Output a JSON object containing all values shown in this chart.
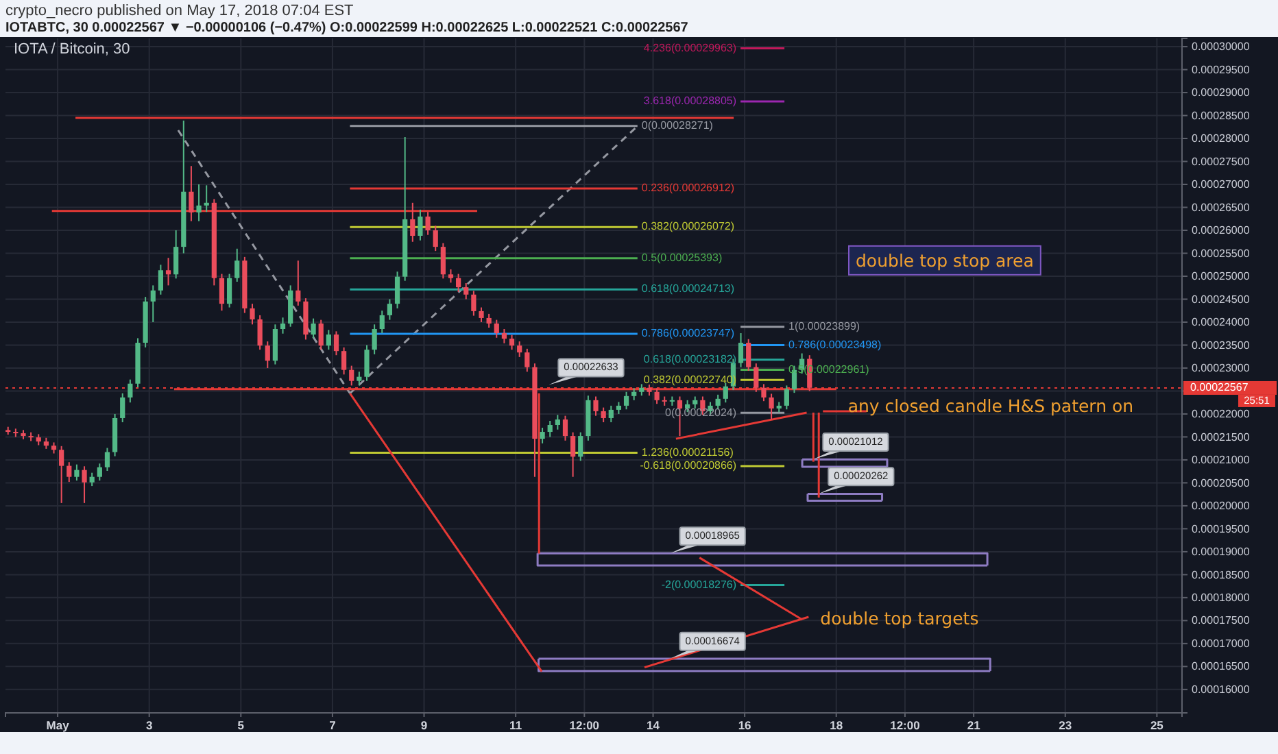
{
  "chart_data": {
    "type": "candlestick",
    "title": "IOTA / Bitcoin, 30",
    "subtitle": "crypto_necro published on May 17, 2018 07:04 EST",
    "annotations": [
      "IOTABTC, 30 0.00022567 ▼ −0.00000106 (−0.47%) O:0.00022599 H:0.00022625 L:0.00022521 C:0.00022567",
      "25:51",
      "double top stop area",
      {
        "text": "any closed candle H&S patern on",
        "x": "2018-05-18T02:30",
        "y": 0.0002215
      },
      {
        "text": "double top targets",
        "x": "2018-05-17T12:00",
        "y": 0.0001752
      },
      {
        "text": "0.00022633",
        "x": "2018-05-11T17:20",
        "y": 0.00022633
      },
      {
        "text": "0.00021012",
        "x": "2018-05-17T12:00",
        "y": 0.00021012
      },
      {
        "text": "0.00020262",
        "x": "2018-05-17T14:50",
        "y": 0.00020262
      },
      {
        "text": "0.00018965",
        "x": "2018-05-14T09:00",
        "y": 0.00018965
      },
      {
        "text": "0.00016674",
        "x": "2018-05-14T09:00",
        "y": 0.00016674
      }
    ],
    "x": [
      "2018-04-29T22:00",
      "2018-04-30T02:00",
      "2018-04-30T06:00",
      "2018-04-30T10:00",
      "2018-04-30T14:00",
      "2018-04-30T18:00",
      "2018-04-30T22:00",
      "2018-05-01T02:00",
      "2018-05-01T06:00",
      "2018-05-01T10:00",
      "2018-05-01T14:00",
      "2018-05-01T18:00",
      "2018-05-01T22:00",
      "2018-05-02T02:00",
      "2018-05-02T06:00",
      "2018-05-02T10:00",
      "2018-05-02T14:00",
      "2018-05-02T18:00",
      "2018-05-02T22:00",
      "2018-05-03T02:00",
      "2018-05-03T06:00",
      "2018-05-03T10:00",
      "2018-05-03T14:00",
      "2018-05-03T18:00",
      "2018-05-03T22:00",
      "2018-05-04T02:00",
      "2018-05-04T06:00",
      "2018-05-04T10:00",
      "2018-05-04T14:00",
      "2018-05-04T18:00",
      "2018-05-04T22:00",
      "2018-05-05T02:00",
      "2018-05-05T06:00",
      "2018-05-05T10:00",
      "2018-05-05T14:00",
      "2018-05-05T18:00",
      "2018-05-05T22:00",
      "2018-05-06T02:00",
      "2018-05-06T06:00",
      "2018-05-06T10:00",
      "2018-05-06T14:00",
      "2018-05-06T18:00",
      "2018-05-06T22:00",
      "2018-05-07T02:00",
      "2018-05-07T06:00",
      "2018-05-07T10:00",
      "2018-05-07T14:00",
      "2018-05-07T18:00",
      "2018-05-07T22:00",
      "2018-05-08T02:00",
      "2018-05-08T06:00",
      "2018-05-08T10:00",
      "2018-05-08T14:00",
      "2018-05-08T18:00",
      "2018-05-08T22:00",
      "2018-05-09T02:00",
      "2018-05-09T06:00",
      "2018-05-09T10:00",
      "2018-05-09T14:00",
      "2018-05-09T18:00",
      "2018-05-09T22:00",
      "2018-05-10T02:00",
      "2018-05-10T06:00",
      "2018-05-10T10:00",
      "2018-05-10T14:00",
      "2018-05-10T18:00",
      "2018-05-10T22:00",
      "2018-05-11T02:00",
      "2018-05-11T06:00",
      "2018-05-11T10:00",
      "2018-05-11T14:00",
      "2018-05-11T18:00",
      "2018-05-11T22:00",
      "2018-05-12T02:00",
      "2018-05-12T06:00",
      "2018-05-12T10:00",
      "2018-05-12T14:00",
      "2018-05-12T18:00",
      "2018-05-12T22:00",
      "2018-05-13T02:00",
      "2018-05-13T06:00",
      "2018-05-13T10:00",
      "2018-05-13T14:00",
      "2018-05-13T18:00",
      "2018-05-13T22:00",
      "2018-05-14T02:00",
      "2018-05-14T06:00",
      "2018-05-14T10:00",
      "2018-05-14T14:00",
      "2018-05-14T18:00",
      "2018-05-14T22:00",
      "2018-05-15T02:00",
      "2018-05-15T06:00",
      "2018-05-15T10:00",
      "2018-05-15T14:00",
      "2018-05-15T18:00",
      "2018-05-15T22:00",
      "2018-05-16T02:00",
      "2018-05-16T06:00",
      "2018-05-16T10:00",
      "2018-05-16T14:00",
      "2018-05-16T18:00",
      "2018-05-16T22:00",
      "2018-05-17T02:00",
      "2018-05-17T06:00",
      "2018-05-17T10:00"
    ],
    "ohlc": [
      [
        0.0002165,
        0.0002172,
        0.0002155,
        0.0002161
      ],
      [
        0.0002161,
        0.0002168,
        0.000215,
        0.0002158
      ],
      [
        0.0002158,
        0.0002165,
        0.0002145,
        0.0002152
      ],
      [
        0.0002152,
        0.000216,
        0.0002141,
        0.0002149
      ],
      [
        0.0002149,
        0.0002156,
        0.0002132,
        0.000214
      ],
      [
        0.000214,
        0.0002148,
        0.0002124,
        0.0002131
      ],
      [
        0.0002131,
        0.0002138,
        0.0002114,
        0.0002122
      ],
      [
        0.0002122,
        0.000213,
        0.0002006,
        0.0002087
      ],
      [
        0.0002087,
        0.0002095,
        0.0002052,
        0.0002063
      ],
      [
        0.0002063,
        0.000209,
        0.0002055,
        0.0002078
      ],
      [
        0.0002078,
        0.0002086,
        0.0002006,
        0.0002051
      ],
      [
        0.0002051,
        0.0002072,
        0.0002043,
        0.0002063
      ],
      [
        0.0002063,
        0.0002092,
        0.0002055,
        0.0002084
      ],
      [
        0.0002084,
        0.0002126,
        0.0002076,
        0.0002117
      ],
      [
        0.0002117,
        0.00022,
        0.0002108,
        0.0002191
      ],
      [
        0.0002191,
        0.0002245,
        0.0002182,
        0.0002236
      ],
      [
        0.0002236,
        0.0002275,
        0.0002225,
        0.0002266
      ],
      [
        0.0002266,
        0.0002365,
        0.0002258,
        0.0002355
      ],
      [
        0.0002355,
        0.0002455,
        0.0002345,
        0.0002445
      ],
      [
        0.0002445,
        0.000248,
        0.00024,
        0.0002469
      ],
      [
        0.0002469,
        0.0002525,
        0.000246,
        0.0002513
      ],
      [
        0.0002513,
        0.000254,
        0.000248,
        0.0002504
      ],
      [
        0.0002504,
        0.00026,
        0.0002495,
        0.0002564
      ],
      [
        0.0002564,
        0.0002839,
        0.000255,
        0.0002684
      ],
      [
        0.0002684,
        0.000274,
        0.000262,
        0.0002639
      ],
      [
        0.0002639,
        0.00027,
        0.000262,
        0.0002654
      ],
      [
        0.0002654,
        0.0002698,
        0.000264,
        0.000266
      ],
      [
        0.000266,
        0.0002668,
        0.000248,
        0.0002496
      ],
      [
        0.0002496,
        0.0002505,
        0.0002425,
        0.000244
      ],
      [
        0.000244,
        0.0002505,
        0.0002432,
        0.0002496
      ],
      [
        0.0002496,
        0.000256,
        0.0002488,
        0.0002534
      ],
      [
        0.0002534,
        0.0002542,
        0.000242,
        0.000243
      ],
      [
        0.000243,
        0.000244,
        0.0002395,
        0.0002406
      ],
      [
        0.0002406,
        0.0002415,
        0.000234,
        0.0002349
      ],
      [
        0.0002349,
        0.0002358,
        0.00023,
        0.0002316
      ],
      [
        0.0002316,
        0.0002395,
        0.0002308,
        0.0002385
      ],
      [
        0.0002385,
        0.000241,
        0.0002375,
        0.0002397
      ],
      [
        0.0002397,
        0.000248,
        0.000239,
        0.0002469
      ],
      [
        0.0002469,
        0.0002534,
        0.0002436,
        0.0002445
      ],
      [
        0.0002445,
        0.0002452,
        0.0002362,
        0.0002373
      ],
      [
        0.0002373,
        0.0002408,
        0.0002365,
        0.0002397
      ],
      [
        0.0002397,
        0.0002405,
        0.000234,
        0.0002349
      ],
      [
        0.0002349,
        0.0002383,
        0.000234,
        0.0002373
      ],
      [
        0.0002373,
        0.000238,
        0.0002328,
        0.0002337
      ],
      [
        0.0002337,
        0.0002345,
        0.0002286,
        0.0002296
      ],
      [
        0.0002296,
        0.0002305,
        0.0002262,
        0.0002272
      ],
      [
        0.0002272,
        0.0002292,
        0.0002262,
        0.0002281
      ],
      [
        0.0002281,
        0.000235,
        0.0002272,
        0.000234
      ],
      [
        0.000234,
        0.0002395,
        0.000233,
        0.0002385
      ],
      [
        0.0002385,
        0.0002425,
        0.0002376,
        0.0002415
      ],
      [
        0.0002415,
        0.000245,
        0.0002405,
        0.000244
      ],
      [
        0.000244,
        0.000251,
        0.000243,
        0.0002499
      ],
      [
        0.0002499,
        0.0002803,
        0.000249,
        0.0002624
      ],
      [
        0.0002624,
        0.000266,
        0.0002575,
        0.0002588
      ],
      [
        0.0002588,
        0.0002645,
        0.0002578,
        0.000263
      ],
      [
        0.000263,
        0.000264,
        0.000259,
        0.00026
      ],
      [
        0.00026,
        0.000261,
        0.0002555,
        0.0002564
      ],
      [
        0.0002564,
        0.0002572,
        0.0002495,
        0.0002504
      ],
      [
        0.0002504,
        0.0002515,
        0.0002486,
        0.0002496
      ],
      [
        0.0002496,
        0.0002505,
        0.0002466,
        0.0002476
      ],
      [
        0.0002476,
        0.0002485,
        0.000245,
        0.000246
      ],
      [
        0.000246,
        0.0002468,
        0.0002414,
        0.0002424
      ],
      [
        0.0002424,
        0.0002432,
        0.00024,
        0.0002409
      ],
      [
        0.0002409,
        0.0002418,
        0.0002388,
        0.0002397
      ],
      [
        0.0002397,
        0.0002405,
        0.0002366,
        0.0002376
      ],
      [
        0.0002376,
        0.0002385,
        0.0002354,
        0.0002364
      ],
      [
        0.0002364,
        0.0002372,
        0.000234,
        0.0002349
      ],
      [
        0.0002349,
        0.0002358,
        0.0002324,
        0.0002334
      ],
      [
        0.0002334,
        0.0002342,
        0.0002292,
        0.0002302
      ],
      [
        0.0002302,
        0.000231,
        0.0002063,
        0.0002146
      ],
      [
        0.0002146,
        0.000217,
        0.0002136,
        0.0002161
      ],
      [
        0.0002161,
        0.0002185,
        0.000215,
        0.0002176
      ],
      [
        0.0002176,
        0.0002198,
        0.0002166,
        0.0002188
      ],
      [
        0.0002188,
        0.0002196,
        0.0002142,
        0.0002152
      ],
      [
        0.0002152,
        0.000216,
        0.0002063,
        0.0002107
      ],
      [
        0.0002107,
        0.000216,
        0.0002098,
        0.0002152
      ],
      [
        0.0002152,
        0.000224,
        0.0002142,
        0.000223
      ],
      [
        0.000223,
        0.0002238,
        0.0002196,
        0.0002206
      ],
      [
        0.0002206,
        0.0002214,
        0.0002182,
        0.0002191
      ],
      [
        0.0002191,
        0.0002218,
        0.0002182,
        0.0002209
      ],
      [
        0.0002209,
        0.0002226,
        0.00022,
        0.0002218
      ],
      [
        0.0002218,
        0.0002248,
        0.000221,
        0.0002239
      ],
      [
        0.0002239,
        0.0002256,
        0.000223,
        0.0002248
      ],
      [
        0.0002248,
        0.0002265,
        0.000224,
        0.0002257
      ],
      [
        0.0002257,
        0.0002264,
        0.000224,
        0.0002248
      ],
      [
        0.0002248,
        0.0002256,
        0.0002222,
        0.000223
      ],
      [
        0.000223,
        0.0002238,
        0.0002218,
        0.0002227
      ],
      [
        0.0002227,
        0.0002238,
        0.0002218,
        0.000223
      ],
      [
        0.000223,
        0.0002238,
        0.0002152,
        0.0002212
      ],
      [
        0.0002212,
        0.000223,
        0.0002204,
        0.0002221
      ],
      [
        0.0002221,
        0.0002238,
        0.0002212,
        0.000223
      ],
      [
        0.000223,
        0.0002238,
        0.0002198,
        0.0002206
      ],
      [
        0.0002206,
        0.0002226,
        0.0002198,
        0.0002218
      ],
      [
        0.0002218,
        0.0002242,
        0.000221,
        0.0002233
      ],
      [
        0.0002233,
        0.0002268,
        0.0002225,
        0.000226
      ],
      [
        0.000226,
        0.000232,
        0.0002252,
        0.0002311
      ],
      [
        0.0002311,
        0.0002376,
        0.0002302,
        0.0002355
      ],
      [
        0.0002355,
        0.0002363,
        0.0002294,
        0.0002302
      ],
      [
        0.0002302,
        0.000231,
        0.0002248,
        0.0002257
      ],
      [
        0.0002257,
        0.0002265,
        0.0002228,
        0.0002236
      ],
      [
        0.0002236,
        0.0002244,
        0.0002188,
        0.0002212
      ],
      [
        0.0002212,
        0.0002226,
        0.0002204,
        0.0002218
      ],
      [
        0.0002218,
        0.0002262,
        0.000221,
        0.0002254
      ],
      [
        0.0002254,
        0.0002305,
        0.0002246,
        0.0002296
      ],
      [
        0.0002296,
        0.0002332,
        0.0002288,
        0.000232
      ],
      [
        0.000232,
        0.0002328,
        0.000225,
        0.0002257
      ]
    ],
    "colors": [
      "#eb4d5c",
      "#eb4d5c",
      "#eb4d5c",
      "#eb4d5c",
      "#eb4d5c",
      "#eb4d5c",
      "#eb4d5c",
      "#eb4d5c",
      "#eb4d5c",
      "#53b987",
      "#eb4d5c",
      "#53b987",
      "#53b987",
      "#53b987",
      "#53b987",
      "#53b987",
      "#53b987",
      "#53b987",
      "#53b987",
      "#53b987",
      "#53b987",
      "#eb4d5c",
      "#53b987",
      "#53b987",
      "#eb4d5c",
      "#53b987",
      "#53b987",
      "#eb4d5c",
      "#eb4d5c",
      "#53b987",
      "#53b987",
      "#eb4d5c",
      "#eb4d5c",
      "#eb4d5c",
      "#eb4d5c",
      "#53b987",
      "#53b987",
      "#53b987",
      "#eb4d5c",
      "#eb4d5c",
      "#53b987",
      "#eb4d5c",
      "#53b987",
      "#eb4d5c",
      "#eb4d5c",
      "#eb4d5c",
      "#53b987",
      "#53b987",
      "#53b987",
      "#53b987",
      "#53b987",
      "#53b987",
      "#53b987",
      "#eb4d5c",
      "#53b987",
      "#eb4d5c",
      "#eb4d5c",
      "#eb4d5c",
      "#eb4d5c",
      "#eb4d5c",
      "#eb4d5c",
      "#eb4d5c",
      "#eb4d5c",
      "#eb4d5c",
      "#eb4d5c",
      "#eb4d5c",
      "#eb4d5c",
      "#eb4d5c",
      "#eb4d5c",
      "#eb4d5c",
      "#53b987",
      "#53b987",
      "#53b987",
      "#eb4d5c",
      "#eb4d5c",
      "#53b987",
      "#53b987",
      "#eb4d5c",
      "#eb4d5c",
      "#53b987",
      "#53b987",
      "#53b987",
      "#53b987",
      "#53b987",
      "#eb4d5c",
      "#eb4d5c",
      "#eb4d5c",
      "#53b987",
      "#eb4d5c",
      "#53b987",
      "#53b987",
      "#eb4d5c",
      "#53b987",
      "#53b987",
      "#53b987",
      "#53b987",
      "#53b987",
      "#eb4d5c",
      "#eb4d5c",
      "#eb4d5c",
      "#eb4d5c",
      "#53b987",
      "#53b987",
      "#53b987",
      "#53b987",
      "#eb4d5c"
    ],
    "series": [
      {
        "type": "line",
        "color": "#9598a1",
        "line_style": "dashed",
        "x": [
          "2018-05-03T15:10",
          "2018-05-07T09:10"
        ],
        "values": [
          0.0002818,
          0.0002245
        ]
      },
      {
        "type": "line",
        "color": "#9598a1",
        "line_style": "dashed",
        "x": [
          "2018-05-07T09:10",
          "2018-05-13T15:50"
        ],
        "values": [
          0.0002245,
          0.0002827
        ]
      },
      {
        "type": "line",
        "name": "0(0.00028271)",
        "color": "#9598a1",
        "x": [
          "2018-05-07T09:10",
          "2018-05-13T15:50"
        ],
        "values": [
          0.00028271,
          0.00028271
        ]
      },
      {
        "type": "line",
        "name": "0.236(0.00026912)",
        "color": "#e53935",
        "x": [
          "2018-05-07T09:10",
          "2018-05-13T15:50"
        ],
        "values": [
          0.00026912,
          0.00026912
        ]
      },
      {
        "type": "line",
        "name": "0.382(0.00026072)",
        "color": "#c0ca33",
        "x": [
          "2018-05-07T09:10",
          "2018-05-13T15:50"
        ],
        "values": [
          0.00026072,
          0.00026072
        ]
      },
      {
        "type": "line",
        "name": "0.5(0.00025393)",
        "color": "#4caf50",
        "x": [
          "2018-05-07T09:10",
          "2018-05-13T15:50"
        ],
        "values": [
          0.00025393,
          0.00025393
        ]
      },
      {
        "type": "line",
        "name": "0.618(0.00024713)",
        "color": "#26a69a",
        "x": [
          "2018-05-07T09:10",
          "2018-05-13T15:50"
        ],
        "values": [
          0.00024713,
          0.00024713
        ]
      },
      {
        "type": "line",
        "name": "0.786(0.00023747)",
        "color": "#2196f3",
        "x": [
          "2018-05-07T09:10",
          "2018-05-13T15:50"
        ],
        "values": [
          0.00023747,
          0.00023747
        ]
      },
      {
        "type": "line",
        "name": "1.236(0.00021156)",
        "color": "#c0ca33",
        "x": [
          "2018-05-07T09:10",
          "2018-05-13T15:50"
        ],
        "values": [
          0.00021156,
          0.00021156
        ]
      },
      {
        "type": "line",
        "name": "4.236(0.00029963)",
        "color": "#c2185b",
        "x": [
          "2018-05-15T21:50",
          "2018-05-16T20:50"
        ],
        "values": [
          0.00029963,
          0.00029963
        ]
      },
      {
        "type": "line",
        "name": "3.618(0.00028805)",
        "color": "#9c27b0",
        "x": [
          "2018-05-15T21:50",
          "2018-05-16T20:50"
        ],
        "values": [
          0.00028805,
          0.00028805
        ]
      },
      {
        "type": "line",
        "name": "1(0.00023899)",
        "color": "#9598a1",
        "x": [
          "2018-05-15T21:50",
          "2018-05-16T20:50"
        ],
        "values": [
          0.00023899,
          0.00023899
        ]
      },
      {
        "type": "line",
        "name": "0.786(0.00023498)",
        "color": "#2196f3",
        "x": [
          "2018-05-15T21:50",
          "2018-05-16T20:50"
        ],
        "values": [
          0.00023498,
          0.00023498
        ]
      },
      {
        "type": "line",
        "name": "0.618(0.00023182)",
        "color": "#26a69a",
        "x": [
          "2018-05-15T21:50",
          "2018-05-16T20:50"
        ],
        "values": [
          0.00023182,
          0.00023182
        ]
      },
      {
        "type": "line",
        "name": "0.5(0.00022961)",
        "color": "#4caf50",
        "x": [
          "2018-05-15T21:50",
          "2018-05-16T20:50"
        ],
        "values": [
          0.00022961,
          0.00022961
        ]
      },
      {
        "type": "line",
        "name": "0.382(0.00022740)",
        "color": "#c0ca33",
        "x": [
          "2018-05-15T21:50",
          "2018-05-16T20:50"
        ],
        "values": [
          0.0002274,
          0.0002274
        ]
      },
      {
        "type": "line",
        "name": "0(0.00022024)",
        "color": "#9598a1",
        "x": [
          "2018-05-15T21:50",
          "2018-05-16T20:50"
        ],
        "values": [
          0.00022024,
          0.00022024
        ]
      },
      {
        "type": "line",
        "name": "-0.618(0.00020866)",
        "color": "#c0ca33",
        "x": [
          "2018-05-15T21:50",
          "2018-05-16T20:50"
        ],
        "values": [
          0.00020866,
          0.00020866
        ]
      },
      {
        "type": "line",
        "name": "-2(0.00018276)",
        "color": "#26a69a",
        "x": [
          "2018-05-15T21:50",
          "2018-05-16T20:50"
        ],
        "values": [
          0.00018276,
          0.00018276
        ]
      },
      {
        "type": "line",
        "color": "#8e7cc3",
        "x": [
          "2018-05-11T11:30",
          "2018-05-21T07:10",
          "2018-05-21T07:10"
        ],
        "values": [
          0.00018965,
          0.00018965,
          0.000187
        ]
      },
      {
        "type": "line",
        "color": "#8e7cc3",
        "x": [
          "2018-05-11T11:30",
          "2018-05-11T11:30",
          "2018-05-21T07:10"
        ],
        "values": [
          0.00018965,
          0.000187,
          0.000187
        ]
      },
      {
        "type": "line",
        "color": "#8e7cc3",
        "x": [
          "2018-05-11T12:00",
          "2018-05-21T08:40",
          "2018-05-21T08:40"
        ],
        "values": [
          0.0001667,
          0.0001667,
          0.000164
        ]
      },
      {
        "type": "line",
        "color": "#8e7cc3",
        "x": [
          "2018-05-11T12:00",
          "2018-05-11T12:00",
          "2018-05-21T08:40"
        ],
        "values": [
          0.0001667,
          0.000164,
          0.000164
        ]
      },
      {
        "type": "line",
        "color": "#8e7cc3",
        "x": [
          "2018-05-17T06:10",
          "2018-05-19T02:40",
          "2018-05-19T02:40"
        ],
        "values": [
          0.0002101,
          0.0002101,
          0.0002085
        ]
      },
      {
        "type": "line",
        "color": "#8e7cc3",
        "x": [
          "2018-05-17T06:10",
          "2018-05-17T06:10",
          "2018-05-19T02:40"
        ],
        "values": [
          0.0002101,
          0.0002085,
          0.0002085
        ]
      },
      {
        "type": "line",
        "color": "#8e7cc3",
        "x": [
          "2018-05-17T09:00",
          "2018-05-19T00:00",
          "2018-05-19T00:00"
        ],
        "values": [
          0.0002026,
          0.0002026,
          0.0002011
        ]
      },
      {
        "type": "line",
        "color": "#8e7cc3",
        "x": [
          "2018-05-17T09:00",
          "2018-05-17T09:00",
          "2018-05-19T00:00"
        ],
        "values": [
          0.0002026,
          0.0002011,
          0.0002011
        ]
      },
      {
        "type": "line",
        "color": "#e53935",
        "x": [
          "2018-05-01T09:20",
          "2018-05-15T18:15"
        ],
        "values": [
          0.0002845,
          0.0002845
        ]
      },
      {
        "type": "line",
        "color": "#e53935",
        "x": [
          "2018-04-30T21:00",
          "2018-05-10T03:50"
        ],
        "values": [
          0.0002642,
          0.0002642
        ]
      },
      {
        "type": "line",
        "color": "#e53935",
        "x": [
          "2018-05-03T13:00",
          "2018-05-18T00:00"
        ],
        "values": [
          0.0002254,
          0.0002254
        ]
      },
      {
        "type": "line",
        "color": "#e53935",
        "x": [
          "2018-05-07T09:10",
          "2018-05-11T13:40"
        ],
        "values": [
          0.0002245,
          0.0001639
        ]
      },
      {
        "type": "line",
        "color": "#e53935",
        "x": [
          "2018-05-11T12:15",
          "2018-05-11T12:15"
        ],
        "values": [
          0.0002245,
          0.0001896
        ]
      },
      {
        "type": "line",
        "color": "#e53935",
        "x": [
          "2018-05-14T12:00",
          "2018-05-17T08:30"
        ],
        "values": [
          0.0002146,
          0.0002203
        ]
      },
      {
        "type": "line",
        "color": "#e53935",
        "x": [
          "2018-05-17T12:00",
          "2018-05-17T12:00"
        ],
        "values": [
          0.0002203,
          0.0002096
        ]
      },
      {
        "type": "line",
        "color": "#e53935",
        "x": [
          "2018-05-17T14:50",
          "2018-05-17T14:50"
        ],
        "values": [
          0.0002203,
          0.0002018
        ]
      },
      {
        "type": "line",
        "color": "#e53935",
        "x": [
          "2018-05-18T15:50",
          "2018-05-17T17:00"
        ],
        "values": [
          0.0002206,
          0.0002206
        ]
      },
      {
        "type": "line",
        "color": "#e53935",
        "x": [
          "2018-05-17T06:10",
          "2018-05-15T00:20"
        ],
        "values": [
          0.0001752,
          0.0001887
        ]
      },
      {
        "type": "line",
        "color": "#e53935",
        "x": [
          "2018-05-17T09:30",
          "2018-05-13T19:30"
        ],
        "values": [
          0.0001758,
          0.0001648
        ]
      }
    ],
    "xlim": [
      "2018-04-29T20:40",
      "2018-05-25T13:10"
    ],
    "ylim": [
      0.0001549,
      0.0003018
    ],
    "xticks": [
      {
        "value": "2018-05-01",
        "label": "May"
      },
      {
        "value": "2018-05-03",
        "label": "3"
      },
      {
        "value": "2018-05-05",
        "label": "5"
      },
      {
        "value": "2018-05-07",
        "label": "7"
      },
      {
        "value": "2018-05-09",
        "label": "9"
      },
      {
        "value": "2018-05-11",
        "label": "11"
      },
      {
        "value": "2018-05-12T12:00",
        "label": "12:00"
      },
      {
        "value": "2018-05-14",
        "label": "14"
      },
      {
        "value": "2018-05-16",
        "label": "16"
      },
      {
        "value": "2018-05-18",
        "label": "18"
      },
      {
        "value": "2018-05-19T12:00",
        "label": "12:00"
      },
      {
        "value": "2018-05-21",
        "label": "21"
      },
      {
        "value": "2018-05-23",
        "label": "23"
      },
      {
        "value": "2018-05-25",
        "label": "25"
      }
    ],
    "yticks": [
      {
        "value": 0.00016,
        "label": "0.00016000"
      },
      {
        "value": 0.000165,
        "label": "0.00016500"
      },
      {
        "value": 0.00017,
        "label": "0.00017000"
      },
      {
        "value": 0.000175,
        "label": "0.00017500"
      },
      {
        "value": 0.00018,
        "label": "0.00018000"
      },
      {
        "value": 0.000185,
        "label": "0.00018500"
      },
      {
        "value": 0.00019,
        "label": "0.00019000"
      },
      {
        "value": 0.000195,
        "label": "0.00019500"
      },
      {
        "value": 0.0002,
        "label": "0.00020000"
      },
      {
        "value": 0.000205,
        "label": "0.00020500"
      },
      {
        "value": 0.00021,
        "label": "0.00021000"
      },
      {
        "value": 0.000215,
        "label": "0.00021500"
      },
      {
        "value": 0.00022,
        "label": "0.00022000"
      },
      {
        "value": 0.000225,
        "label": null
      },
      {
        "value": 0.00023,
        "label": "0.00023000"
      },
      {
        "value": 0.000235,
        "label": "0.00023500"
      },
      {
        "value": 0.00024,
        "label": "0.00024000"
      },
      {
        "value": 0.000245,
        "label": "0.00024500"
      },
      {
        "value": 0.00025,
        "label": "0.00025000"
      },
      {
        "value": 0.000255,
        "label": "0.00025500"
      },
      {
        "value": 0.00026,
        "label": "0.00026000"
      },
      {
        "value": 0.000265,
        "label": "0.00026500"
      },
      {
        "value": 0.00027,
        "label": "0.00027000"
      },
      {
        "value": 0.000275,
        "label": "0.00027500"
      },
      {
        "value": 0.00028,
        "label": "0.00028000"
      },
      {
        "value": 0.000285,
        "label": "0.00028500"
      },
      {
        "value": 0.00029,
        "label": "0.00029000"
      },
      {
        "value": 0.000295,
        "label": "0.00029500"
      },
      {
        "value": 0.0003,
        "label": "0.00030000"
      }
    ],
    "ref_lines": [
      {
        "axis": "y",
        "value": 0.00022567,
        "label": "0.00022567",
        "color": "#e53935",
        "line_style": "dotted"
      }
    ],
    "grid": true
  }
}
